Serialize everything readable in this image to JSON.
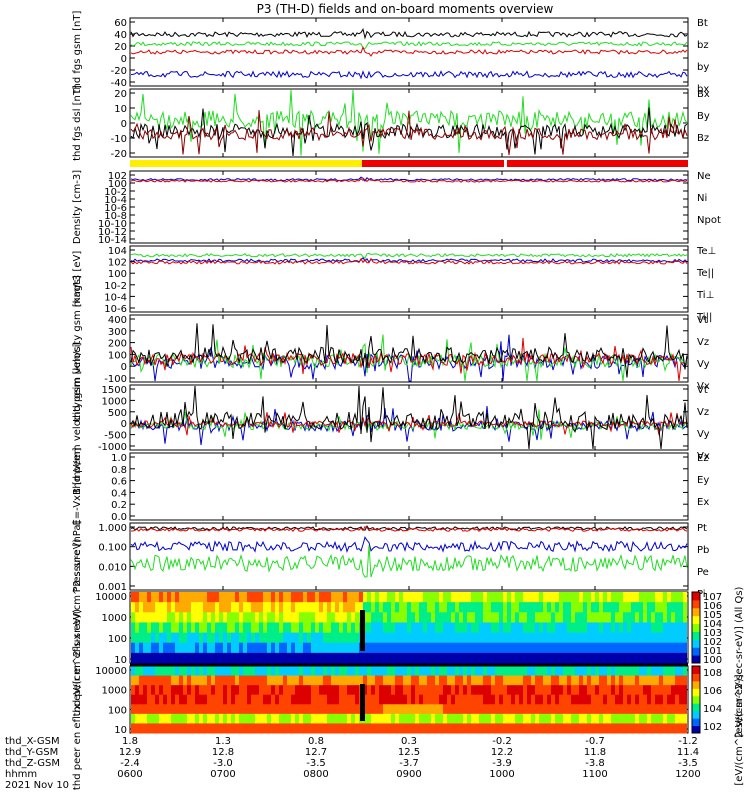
{
  "title": "P3 (TH-D) fields and on-board moments overview",
  "date": "2021 Nov 10",
  "x_ticks": [
    "0600",
    "0700",
    "0800",
    "0900",
    "1000",
    "1100",
    "1200"
  ],
  "ephemeris": {
    "labels": [
      "thd_X-GSM",
      "thd_Y-GSM",
      "thd_Z-GSM",
      "hhmm"
    ],
    "X": [
      "1.8",
      "1.3",
      "0.8",
      "0.3",
      "-0.2",
      "-0.7",
      "-1.2"
    ],
    "Y": [
      "12.9",
      "12.8",
      "12.7",
      "12.5",
      "12.2",
      "11.8",
      "11.4"
    ],
    "Z": [
      "-2.4",
      "-3.0",
      "-3.5",
      "-3.7",
      "-3.9",
      "-3.8",
      "-3.5"
    ]
  },
  "colorbar_label_top": "[eV/(cm^2-sec-sr-eV)] (All Qs)",
  "colorbar_label_bottom": "[eV/(cm^2-sec-sr-eV)]",
  "colorbar_ticks_top": [
    "10^7",
    "10^6",
    "10^5",
    "10^4",
    "10^3",
    "10^2",
    "10^1",
    "10^0"
  ],
  "colorbar_ticks_bottom": [
    "10^8",
    "10^6",
    "10^4",
    "10^2"
  ],
  "chart_data": [
    {
      "type": "line",
      "ylabel": "thd fgs gsm [nT]",
      "yticks": [
        "60",
        "40",
        "20",
        "0",
        "-20",
        "-40"
      ],
      "series": [
        {
          "name": "Bt",
          "color": "#000000",
          "level": 37
        },
        {
          "name": "bz",
          "color": "#dd0000",
          "level": 14
        },
        {
          "name": "by",
          "color": "#22dd22",
          "level": 29
        },
        {
          "name": "bx",
          "color": "#0000cc",
          "level": -22
        }
      ]
    },
    {
      "type": "line",
      "ylabel": "thd fgs dsl [nT]",
      "yticks": [
        "20",
        "10",
        "0",
        "-10",
        "-20"
      ],
      "series": [
        {
          "name": "Bx",
          "color": "#000000",
          "level": -4
        },
        {
          "name": "By",
          "color": "#22dd22",
          "level": 4
        }
      ],
      "legend_extra": "Bz"
    },
    {
      "type": "line",
      "ylabel": "Density [cm-3]",
      "yticks": [
        "10^2",
        "10^0",
        "10^-2",
        "10^-4",
        "10^-6",
        "10^-8",
        "10^-10",
        "10^-12",
        "10^-14"
      ],
      "series": [
        {
          "name": "Ne",
          "color": "#dd0000"
        },
        {
          "name": "Ni",
          "color": "#000000"
        },
        {
          "name": "Npot",
          "color": "#0000cc"
        }
      ]
    },
    {
      "type": "line",
      "ylabel": "magt3 [eV]",
      "yticks": [
        "10^4",
        "10^2",
        "10^0",
        "10^-2",
        "10^-4",
        "10^-6"
      ],
      "series": [
        {
          "name": "Te⊥",
          "color": "#dd0000"
        },
        {
          "name": "Te||",
          "color": "#000000"
        },
        {
          "name": "Ti⊥",
          "color": "#22dd22"
        },
        {
          "name": "Ti||",
          "color": "#22dd22"
        }
      ]
    },
    {
      "type": "line",
      "ylabel": "thd peim velocity gsm [km/s]",
      "yticks": [
        "400",
        "300",
        "200",
        "100",
        "0",
        "-100"
      ],
      "series": [
        {
          "name": "Vt",
          "color": "#000000"
        },
        {
          "name": "Vz",
          "color": "#dd0000"
        },
        {
          "name": "Vy",
          "color": "#22dd22"
        },
        {
          "name": "Vx",
          "color": "#0000cc"
        }
      ]
    },
    {
      "type": "line",
      "ylabel": "thd peem velocity gsm [km/s]",
      "yticks": [
        "1500",
        "1000",
        "500",
        "0",
        "-500",
        "-1000"
      ],
      "series": [
        {
          "name": "Vt",
          "color": "#000000"
        },
        {
          "name": "Vz",
          "color": "#dd0000"
        },
        {
          "name": "Vy",
          "color": "#22dd22"
        },
        {
          "name": "Vx",
          "color": "#0000cc"
        }
      ]
    },
    {
      "type": "line",
      "ylabel": "E=-VxB [mV/m]",
      "yticks": [
        "1.0",
        "0.8",
        "0.6",
        "0.4",
        "0.2",
        "0.0"
      ],
      "series": [
        {
          "name": "Ez",
          "color": "#dd0000"
        },
        {
          "name": "Ey",
          "color": "#22dd22"
        },
        {
          "name": "Ex",
          "color": "#0000cc"
        }
      ]
    },
    {
      "type": "line",
      "ylabel": "Pressure [nPa]",
      "yticks": [
        "1.000",
        "0.100",
        "0.010",
        "0.001"
      ],
      "series": [
        {
          "name": "Pt",
          "color": "#000000"
        },
        {
          "name": "Pb",
          "color": "#dd0000"
        },
        {
          "name": "Pe",
          "color": "#22dd22"
        },
        {
          "name": "Pi",
          "color": "#0000cc"
        }
      ]
    },
    {
      "type": "heatmap",
      "ylabel": "thd peir en eflux eV/(cm^2-s-sr-eV)",
      "yticks": [
        "10000",
        "1000",
        "100",
        "10"
      ]
    },
    {
      "type": "heatmap",
      "ylabel": "thd peer en eflux eV/(cm^2-s-sr-eV)",
      "yticks": [
        "10000",
        "1000",
        "100",
        "10"
      ]
    }
  ]
}
